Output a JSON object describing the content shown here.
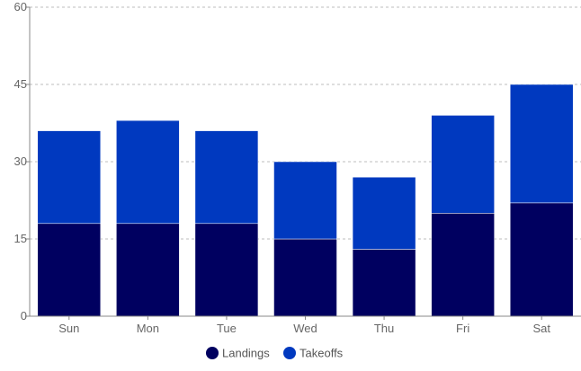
{
  "chart_data": {
    "type": "bar",
    "stacked": true,
    "categories": [
      "Sun",
      "Mon",
      "Tue",
      "Wed",
      "Thu",
      "Fri",
      "Sat"
    ],
    "series": [
      {
        "name": "Landings",
        "color": "#000060",
        "values": [
          18,
          18,
          18,
          15,
          13,
          20,
          22
        ]
      },
      {
        "name": "Takeoffs",
        "color": "#0039BF",
        "values": [
          18,
          20,
          18,
          15,
          14,
          19,
          23
        ]
      }
    ],
    "ylim": [
      0,
      60
    ],
    "yticks": [
      0,
      15,
      30,
      45,
      60
    ],
    "grid": true,
    "legend_position": "bottom"
  }
}
